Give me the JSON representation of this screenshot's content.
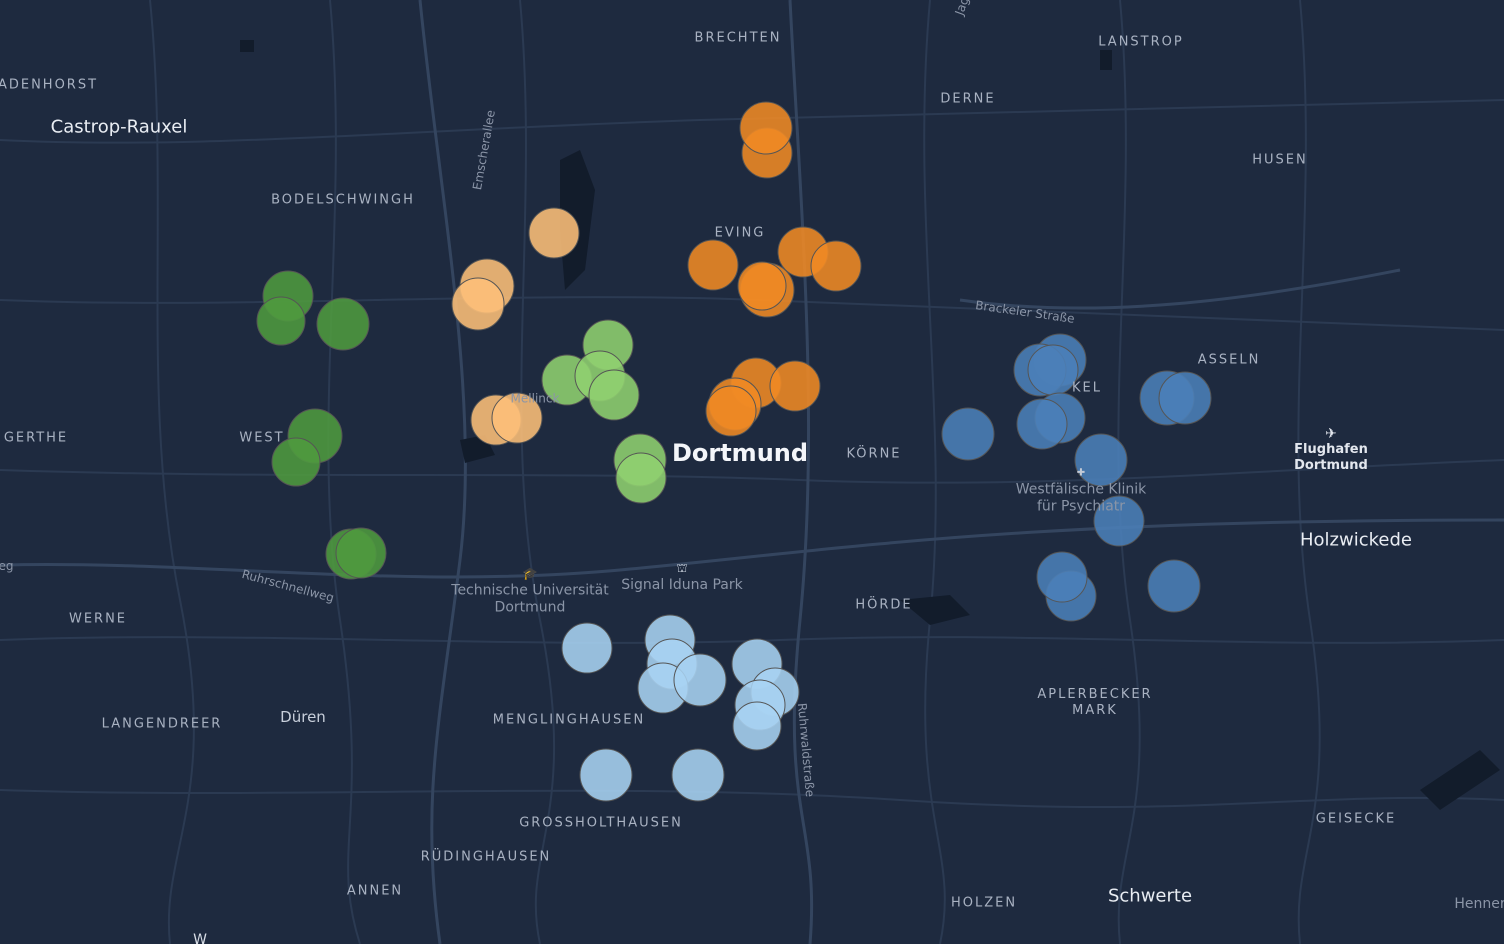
{
  "map": {
    "city": "Dortmund",
    "towns": [
      "Castrop-Rauxel",
      "Holzwickede",
      "Schwerte",
      "Düren"
    ],
    "districts": [
      "BRECHTEN",
      "LANSTROP",
      "ADENHORST",
      "DERNE",
      "HUSEN",
      "BODELSCHWINGH",
      "EVING",
      "ASSELN",
      "GERTHE",
      "WEST",
      "KÖRNE",
      "WERNE",
      "HÖRDE",
      "LANGENDREER",
      "MENGLINGHAUSEN",
      "APLERBECKER MARK",
      "GROSSHOLTHAUSEN",
      "RÜDINGHAUSEN",
      "ANNEN",
      "HOLZEN",
      "GEISECKE",
      "KEL"
    ],
    "streets": [
      "Brackeler Straße",
      "Emscherallee",
      "Ruhrschnellweg",
      "Ruhrwaldstraße",
      "Jag",
      "eg",
      "Henner",
      "W"
    ],
    "pois": {
      "university": [
        "Technische Universität",
        "Dortmund"
      ],
      "stadium": "Signal Iduna Park",
      "clinic": [
        "Westfälische Klinik",
        "für Psychiatr"
      ],
      "airport": [
        "Flughafen",
        "Dortmund"
      ],
      "mellinck": "Mellinck"
    }
  },
  "colors": {
    "background": "#1e2a3f",
    "dark_orange": "#f08a24",
    "light_orange": "#fdbf79",
    "dark_green": "#4f9a3f",
    "light_green": "#8fd070",
    "light_blue": "#a9d3f2",
    "steel_blue": "#4b7fb8"
  },
  "icons": [
    "university-icon",
    "stadium-icon",
    "clinic-icon",
    "airport-icon"
  ]
}
